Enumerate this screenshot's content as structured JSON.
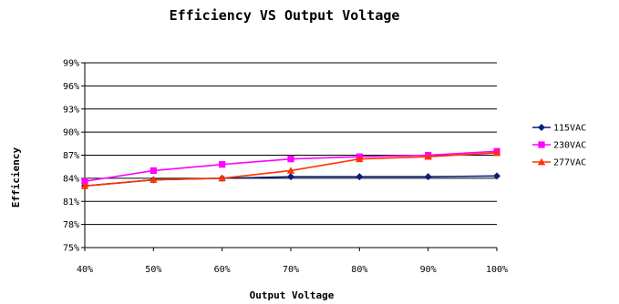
{
  "chart_data": {
    "type": "line",
    "title": "Efficiency VS Output Voltage",
    "xlabel": "Output Voltage",
    "ylabel": "Efficiency",
    "categories": [
      "40%",
      "50%",
      "60%",
      "70%",
      "80%",
      "90%",
      "100%"
    ],
    "ylim": [
      75,
      99
    ],
    "yticks": [
      75,
      78,
      81,
      84,
      87,
      90,
      93,
      96,
      99
    ],
    "ytick_labels": [
      "75%",
      "78%",
      "81%",
      "84%",
      "87%",
      "90%",
      "93%",
      "96%",
      "99%"
    ],
    "grid": "horizontal",
    "legend_position": "right",
    "series": [
      {
        "name": "115VAC",
        "color": "#0a1f7a",
        "marker": "diamond",
        "values": [
          83.0,
          83.8,
          84.0,
          84.2,
          84.2,
          84.2,
          84.3
        ]
      },
      {
        "name": "230VAC",
        "color": "#ff00ff",
        "marker": "square",
        "values": [
          83.6,
          85.0,
          85.8,
          86.5,
          86.8,
          87.0,
          87.5
        ]
      },
      {
        "name": "277VAC",
        "color": "#ff3300",
        "marker": "triangle",
        "values": [
          83.0,
          83.8,
          84.0,
          85.0,
          86.5,
          86.8,
          87.3
        ]
      }
    ]
  }
}
